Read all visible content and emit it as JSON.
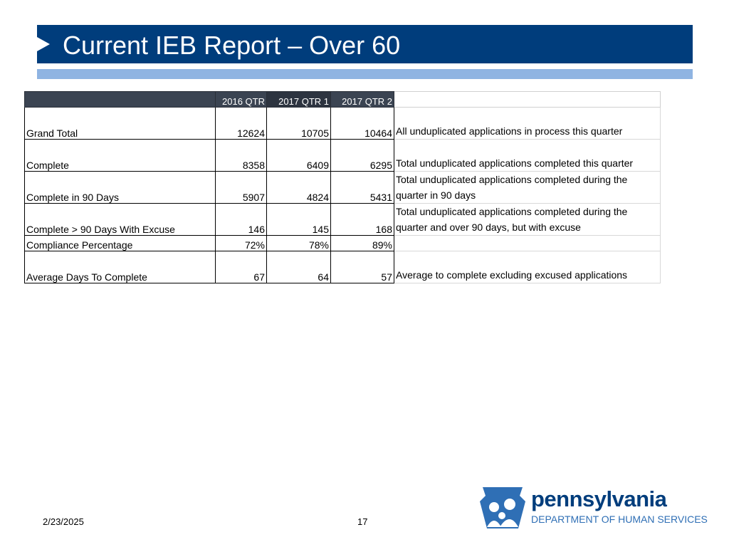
{
  "slide": {
    "title": "Current IEB Report – Over 60",
    "date": "2/23/2025",
    "page_number": "17"
  },
  "table": {
    "headers": [
      "2016 QTR",
      "2017 QTR 1",
      "2017 QTR 2"
    ],
    "rows": [
      {
        "label": "Grand Total",
        "v1": "12624",
        "v2": "10705",
        "v3": "10464",
        "desc": "All unduplicated applications in process this quarter"
      },
      {
        "label": "Complete",
        "v1": "8358",
        "v2": "6409",
        "v3": "6295",
        "desc": "Total unduplicated applications completed this quarter"
      },
      {
        "label": "Complete in 90 Days",
        "v1": "5907",
        "v2": "4824",
        "v3": "5431",
        "desc": "Total unduplicated applications completed during the quarter in 90 days"
      },
      {
        "label": "Complete > 90 Days With Excuse",
        "v1": "146",
        "v2": "145",
        "v3": "168",
        "desc": "Total unduplicated applications completed during the quarter and over 90 days, but with excuse"
      },
      {
        "label": "Compliance Percentage",
        "v1": "72%",
        "v2": "78%",
        "v3": "89%",
        "desc": ""
      },
      {
        "label": "Average Days To Complete",
        "v1": "67",
        "v2": "64",
        "v3": "57",
        "desc": "Average to complete excluding excused applications"
      }
    ]
  },
  "logo": {
    "word": "pennsylvania",
    "subtitle": "DEPARTMENT OF HUMAN SERVICES",
    "icon": "keystone-family-icon"
  },
  "colors": {
    "title_bar": "#003d7c",
    "accent_bar": "#8fb4e2",
    "header_fill": "#3b4452",
    "logo_blue": "#2f6fb5"
  }
}
